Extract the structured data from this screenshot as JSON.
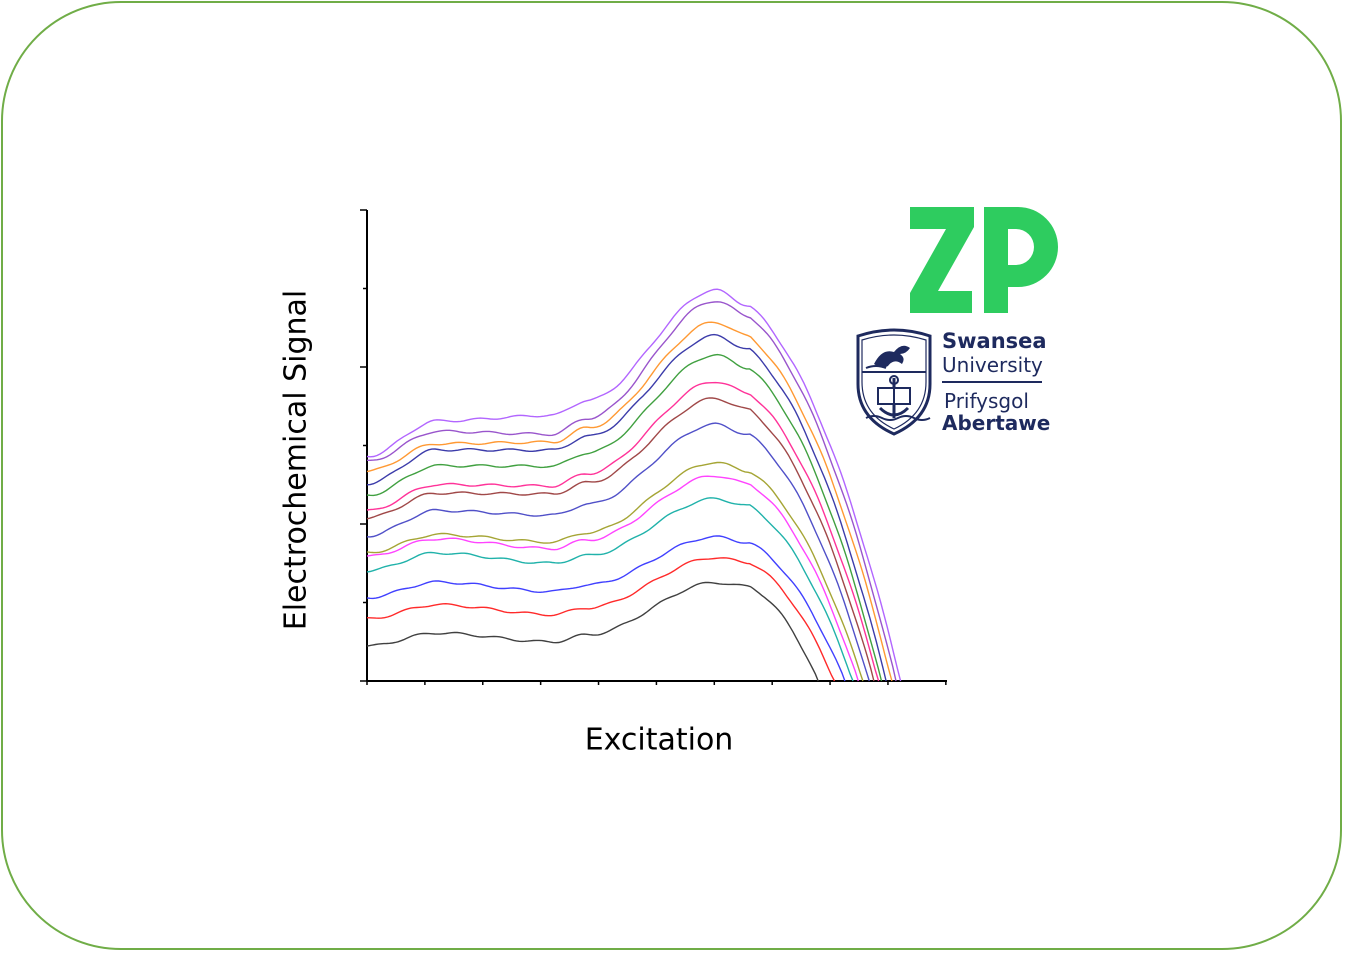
{
  "chart_data": {
    "type": "line",
    "title": "",
    "xlabel": "Excitation",
    "ylabel": "Electrochemical Signal",
    "xlim": [
      0,
      1
    ],
    "ylim": [
      0,
      1
    ],
    "grid": false,
    "legend": "none",
    "x_tick_count": 10,
    "y_tick_count": 6,
    "x_major_ticks": [
      0,
      0.222,
      0.444,
      0.666,
      0.888
    ],
    "y_major_ticks": [
      0,
      0.333,
      0.666,
      1.0
    ],
    "series": [
      {
        "color": "#404040",
        "start": 0.074,
        "plateau": 0.102,
        "dip": 0.083,
        "peak": 0.209,
        "zero_x": 0.778
      },
      {
        "color": "#ff2a2a",
        "start": 0.132,
        "plateau": 0.162,
        "dip": 0.141,
        "peak": 0.262,
        "zero_x": 0.806
      },
      {
        "color": "#4040ff",
        "start": 0.177,
        "plateau": 0.21,
        "dip": 0.19,
        "peak": 0.306,
        "zero_x": 0.824
      },
      {
        "color": "#20b2aa",
        "start": 0.234,
        "plateau": 0.272,
        "dip": 0.25,
        "peak": 0.387,
        "zero_x": 0.838
      },
      {
        "color": "#ff44ff",
        "start": 0.264,
        "plateau": 0.302,
        "dip": 0.281,
        "peak": 0.436,
        "zero_x": 0.847
      },
      {
        "color": "#a5a535",
        "start": 0.272,
        "plateau": 0.311,
        "dip": 0.295,
        "peak": 0.464,
        "zero_x": 0.855
      },
      {
        "color": "#5050c8",
        "start": 0.308,
        "plateau": 0.362,
        "dip": 0.352,
        "peak": 0.545,
        "zero_x": 0.866
      },
      {
        "color": "#a04848",
        "start": 0.346,
        "plateau": 0.399,
        "dip": 0.397,
        "peak": 0.6,
        "zero_x": 0.874
      },
      {
        "color": "#ff3399",
        "start": 0.361,
        "plateau": 0.417,
        "dip": 0.414,
        "peak": 0.636,
        "zero_x": 0.882
      },
      {
        "color": "#40a040",
        "start": 0.394,
        "plateau": 0.457,
        "dip": 0.456,
        "peak": 0.692,
        "zero_x": 0.887
      },
      {
        "color": "#3c3caa",
        "start": 0.419,
        "plateau": 0.491,
        "dip": 0.49,
        "peak": 0.733,
        "zero_x": 0.895
      },
      {
        "color": "#ff9933",
        "start": 0.445,
        "plateau": 0.504,
        "dip": 0.507,
        "peak": 0.762,
        "zero_x": 0.905
      },
      {
        "color": "#9955cc",
        "start": 0.466,
        "plateau": 0.53,
        "dip": 0.524,
        "peak": 0.807,
        "zero_x": 0.912
      },
      {
        "color": "#b266ff",
        "start": 0.477,
        "plateau": 0.552,
        "dip": 0.564,
        "peak": 0.83,
        "zero_x": 0.92
      }
    ]
  },
  "logos": {
    "zp": {
      "name": "ZP",
      "color": "#2ecc5f"
    },
    "swansea": {
      "name_en_1": "Swansea",
      "name_en_2": "University",
      "name_cy_1": "Prifysgol",
      "name_cy_2": "Abertawe",
      "color": "#1e2a5e"
    }
  }
}
